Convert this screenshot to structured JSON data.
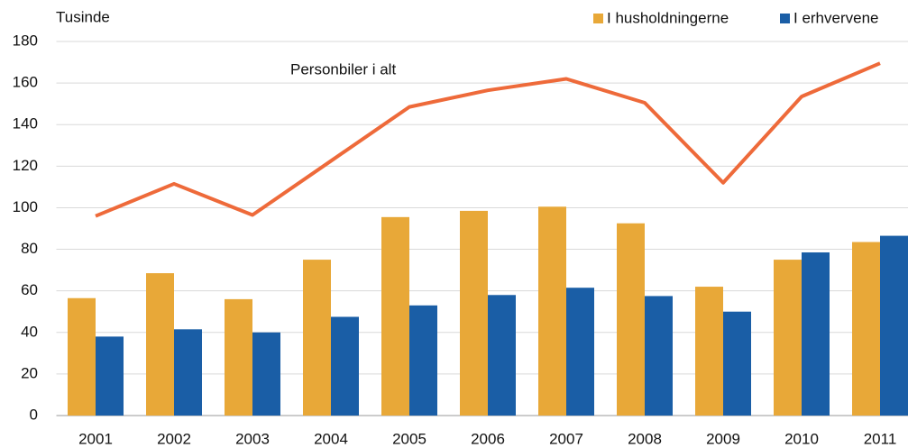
{
  "chart_data": {
    "type": "bar",
    "y_label": "Tusinde",
    "categories": [
      "2001",
      "2002",
      "2003",
      "2004",
      "2005",
      "2006",
      "2007",
      "2008",
      "2009",
      "2010",
      "2011"
    ],
    "series": [
      {
        "name": "I husholdningerne",
        "kind": "bar",
        "color": "#e8a838",
        "values": [
          56.5,
          68.5,
          56,
          75,
          95.5,
          98.5,
          100.5,
          92.5,
          62,
          75,
          83.5
        ]
      },
      {
        "name": "I erhvervene",
        "kind": "bar",
        "color": "#1a5ea6",
        "values": [
          38,
          41.5,
          40,
          47.5,
          53,
          58,
          61.5,
          57.5,
          50,
          78.5,
          86.5
        ]
      },
      {
        "name": "Personbiler i alt",
        "kind": "line",
        "color": "#ee6a3a",
        "values": [
          96,
          111.5,
          96.5,
          122.5,
          148.5,
          156.5,
          162,
          150.5,
          112,
          153.5,
          169.5
        ]
      }
    ],
    "ylim": [
      0,
      180
    ],
    "yticks": [
      0,
      20,
      40,
      60,
      80,
      100,
      120,
      140,
      160,
      180
    ],
    "grid": true,
    "legend": "top-right"
  }
}
